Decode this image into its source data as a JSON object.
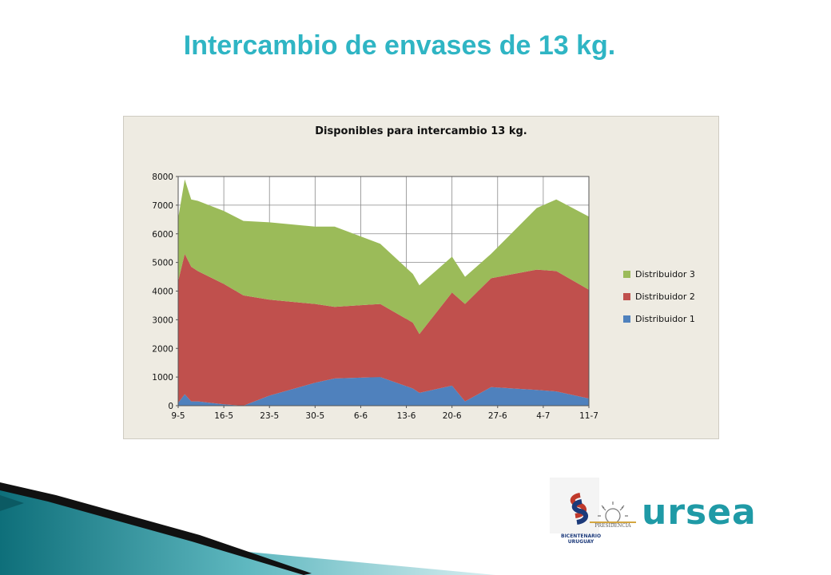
{
  "slide": {
    "title": "Intercambio de envases de 13 kg."
  },
  "chart_data": {
    "type": "area",
    "stacked": true,
    "title": "Disponibles para intercambio 13 kg.",
    "xlabel": "",
    "ylabel": "",
    "x_tick_labels": [
      "9-5",
      "16-5",
      "23-5",
      "30-5",
      "6-6",
      "13-6",
      "20-6",
      "27-6",
      "4-7",
      "11-7"
    ],
    "y_ticks": [
      0,
      1000,
      2000,
      3000,
      4000,
      5000,
      6000,
      7000,
      8000
    ],
    "ylim": [
      0,
      8000
    ],
    "x_range": [
      "9-5",
      "11-7"
    ],
    "grid": true,
    "legend_position": "right",
    "x": [
      "9-5",
      "10-5",
      "11-5",
      "12-5",
      "16-5",
      "19-5",
      "23-5",
      "30-5",
      "2-6",
      "9-6",
      "14-6",
      "15-6",
      "20-6",
      "22-6",
      "26-6",
      "3-7",
      "6-7",
      "11-7"
    ],
    "series": [
      {
        "name": "Distribuidor 1",
        "color": "#4f81bd",
        "values": [
          100,
          400,
          150,
          150,
          50,
          0,
          350,
          800,
          950,
          1000,
          600,
          450,
          700,
          150,
          650,
          550,
          500,
          250
        ]
      },
      {
        "name": "Distribuidor 2",
        "color": "#c0504d",
        "values": [
          4250,
          4900,
          4700,
          4550,
          4200,
          3850,
          3350,
          2750,
          2500,
          2550,
          2300,
          2050,
          3250,
          3400,
          3800,
          4200,
          4200,
          3800
        ]
      },
      {
        "name": "Distribuidor 3",
        "color": "#9bbb59",
        "values": [
          2200,
          2600,
          2350,
          2450,
          2550,
          2600,
          2700,
          2700,
          2800,
          2100,
          1700,
          1700,
          1250,
          950,
          850,
          2150,
          2500,
          2550
        ]
      }
    ]
  },
  "logos": {
    "bicentenario_text": "BICENTENARIO URUGUAY",
    "presidencia_text": "PRESIDENCIA",
    "urse_text": "ursea"
  }
}
